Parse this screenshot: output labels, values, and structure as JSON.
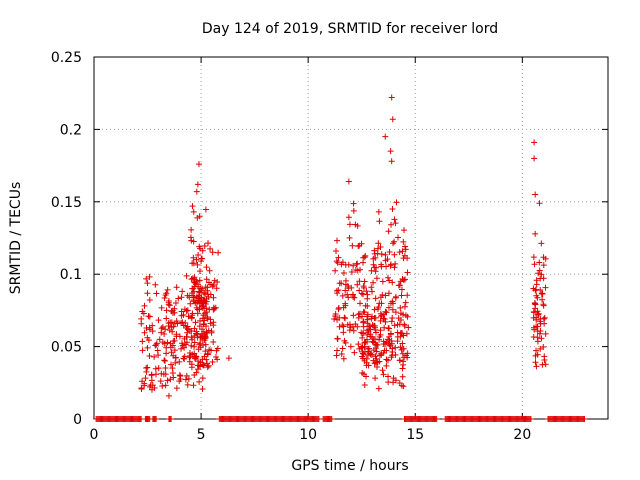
{
  "chart_data": {
    "type": "scatter",
    "title": "Day 124 of 2019, SRMTID for receiver lord",
    "xlabel": "GPS time / hours",
    "ylabel": "SRMTID / TECUs",
    "xlim": [
      0,
      24
    ],
    "ylim": [
      0,
      0.25
    ],
    "x_ticks": [
      0,
      5,
      10,
      15,
      20
    ],
    "x_tick_labels": [
      "0",
      "5",
      "10",
      "15",
      "20"
    ],
    "y_ticks": [
      0,
      0.05,
      0.1,
      0.15,
      0.2,
      0.25
    ],
    "y_tick_labels": [
      "0",
      "0.05",
      "0.1",
      "0.15",
      "0.2",
      "0.25"
    ],
    "grid": true,
    "marker": "+",
    "series": [
      {
        "name": "SRMTID",
        "color": "#e00000",
        "clusters": [
          {
            "x_range": [
              2.2,
              5.3
            ],
            "y_range": [
              0.02,
              0.1
            ],
            "y_center": 0.055,
            "count": 240
          },
          {
            "x_range": [
              4.5,
              5.8
            ],
            "y_range": [
              0.035,
              0.15
            ],
            "y_center": 0.08,
            "count": 140
          },
          {
            "x_range": [
              11.2,
              14.7
            ],
            "y_range": [
              0.04,
              0.15
            ],
            "y_center": 0.085,
            "count": 260
          },
          {
            "x_range": [
              12.5,
              14.5
            ],
            "y_range": [
              0.02,
              0.08
            ],
            "y_center": 0.05,
            "count": 110
          },
          {
            "x_range": [
              20.5,
              21.1
            ],
            "y_range": [
              0.035,
              0.13
            ],
            "y_center": 0.07,
            "count": 70
          }
        ],
        "outliers": [
          {
            "x": 4.9,
            "y": 0.176
          },
          {
            "x": 4.85,
            "y": 0.162
          },
          {
            "x": 4.8,
            "y": 0.157
          },
          {
            "x": 4.6,
            "y": 0.147
          },
          {
            "x": 11.9,
            "y": 0.164
          },
          {
            "x": 13.9,
            "y": 0.222
          },
          {
            "x": 13.95,
            "y": 0.207
          },
          {
            "x": 13.85,
            "y": 0.185
          },
          {
            "x": 13.9,
            "y": 0.178
          },
          {
            "x": 13.6,
            "y": 0.195
          },
          {
            "x": 13.3,
            "y": 0.143
          },
          {
            "x": 20.55,
            "y": 0.191
          },
          {
            "x": 20.55,
            "y": 0.18
          },
          {
            "x": 20.6,
            "y": 0.155
          },
          {
            "x": 20.8,
            "y": 0.149
          },
          {
            "x": 6.3,
            "y": 0.042
          },
          {
            "x": 3.5,
            "y": 0.016
          },
          {
            "x": 13.3,
            "y": 0.021
          }
        ],
        "zero_segments": [
          [
            0.1,
            2.2
          ],
          [
            2.4,
            2.6
          ],
          [
            2.75,
            2.9
          ],
          [
            3.5,
            3.6
          ],
          [
            5.85,
            10.5
          ],
          [
            10.7,
            11.1
          ],
          [
            14.5,
            16.0
          ],
          [
            16.4,
            20.4
          ],
          [
            21.2,
            22.9
          ]
        ]
      }
    ]
  }
}
